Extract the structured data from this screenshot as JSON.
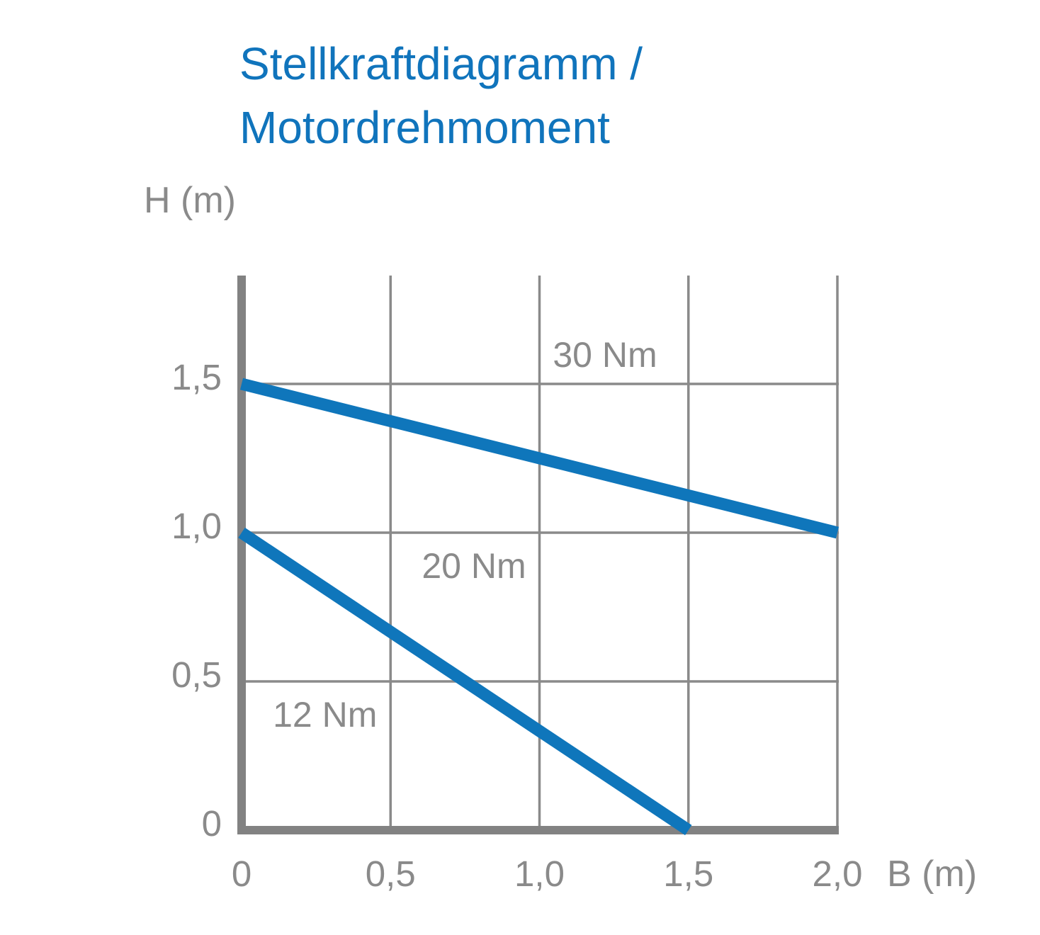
{
  "title": {
    "line1": "Stellkraftdiagramm /",
    "line2": "Motordrehmoment",
    "color": "#1074bc"
  },
  "chart_data": {
    "type": "line",
    "title": "Stellkraftdiagramm / Motordrehmoment",
    "xlabel": "B (m)",
    "ylabel": "H (m)",
    "xlim": [
      0,
      2.0
    ],
    "ylim": [
      0,
      1.86
    ],
    "grid": true,
    "x_ticks": [
      {
        "v": 0,
        "label": "0"
      },
      {
        "v": 0.5,
        "label": "0,5"
      },
      {
        "v": 1.0,
        "label": "1,0"
      },
      {
        "v": 1.5,
        "label": "1,5"
      },
      {
        "v": 2.0,
        "label": "2,0"
      }
    ],
    "y_ticks": [
      {
        "v": 1.5,
        "label": "1,5"
      },
      {
        "v": 1.0,
        "label": "1,0"
      },
      {
        "v": 0.5,
        "label": "0,5"
      },
      {
        "v": 0,
        "label": "0"
      }
    ],
    "series": [
      {
        "name": "30-nm-boundary",
        "points": [
          [
            0,
            1.5
          ],
          [
            2.0,
            1.0
          ]
        ]
      },
      {
        "name": "20-nm-boundary",
        "points": [
          [
            0,
            1.0
          ],
          [
            1.5,
            0
          ]
        ]
      }
    ],
    "region_labels": [
      {
        "text": "30 Nm",
        "x": 1.22,
        "y": 1.6
      },
      {
        "text": "20 Nm",
        "x": 0.78,
        "y": 0.89
      },
      {
        "text": "12 Nm",
        "x": 0.28,
        "y": 0.39
      }
    ],
    "colors": {
      "line": "#0f76bb",
      "axis": "#828282",
      "grid": "#8a8a8a",
      "text": "#8a8a8a"
    }
  }
}
